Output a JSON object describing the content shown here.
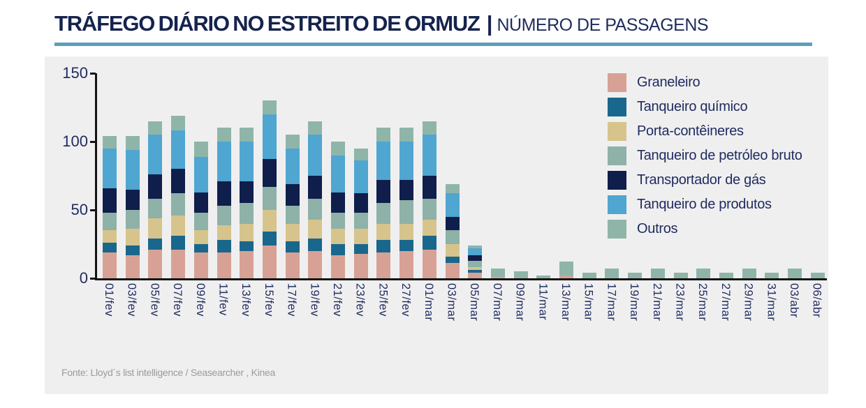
{
  "header": {
    "title": "TRÁFEGO DIÁRIO NO ESTREITO DE ORMUZ",
    "separator": "|",
    "subtitle": "NÚMERO DE PASSAGENS"
  },
  "footer": {
    "source": "Fonte: Lloyd´s list intelligence / Seasearcher , Kinea"
  },
  "colors": {
    "title": "#15234E",
    "divider": "#5C9FB9",
    "panel_background": "#F0EFF0",
    "axis": "#141414",
    "tick_label": "#1E2B5E",
    "footer_text": "#9B9B9B"
  },
  "chart_data": {
    "type": "bar",
    "stacked": true,
    "title": "TRÁFEGO DIÁRIO NO ESTREITO DE ORMUZ | NÚMERO DE PASSAGENS",
    "xlabel": "",
    "ylabel": "",
    "ylim": [
      0,
      150
    ],
    "yticks": [
      0,
      50,
      100,
      150
    ],
    "grid": false,
    "legend_position": "top-right",
    "categories": [
      "01/fev",
      "03/fev",
      "05/fev",
      "07/fev",
      "09/fev",
      "11/fev",
      "13/fev",
      "15/fev",
      "17/fev",
      "19/fev",
      "21/fev",
      "23/fev",
      "25/fev",
      "27/fev",
      "01/mar",
      "03/mar",
      "05/mar",
      "07/mar",
      "09/mar",
      "11/mar",
      "13/mar",
      "15/mar",
      "17/mar",
      "19/mar",
      "21/mar",
      "23/mar",
      "25/mar",
      "27/mar",
      "29/mar",
      "31/mar",
      "03/abr",
      "06/abr"
    ],
    "series": [
      {
        "name": "Graneleiro",
        "color": "#D7A295",
        "values": [
          19,
          17,
          21,
          21,
          19,
          19,
          20,
          24,
          19,
          20,
          17,
          18,
          19,
          20,
          21,
          11,
          4,
          1,
          0,
          0,
          2,
          0,
          0,
          0,
          0,
          0,
          0,
          0,
          0,
          0,
          0,
          0
        ]
      },
      {
        "name": "Tanqueiro químico",
        "color": "#19678C",
        "values": [
          7,
          7,
          8,
          10,
          6,
          9,
          7,
          10,
          8,
          9,
          8,
          7,
          9,
          8,
          10,
          5,
          2,
          0,
          0,
          0,
          0,
          0,
          0,
          0,
          0,
          0,
          0,
          0,
          0,
          0,
          0,
          0
        ]
      },
      {
        "name": "Porta-contêineres",
        "color": "#D6C48C",
        "values": [
          9,
          12,
          15,
          15,
          10,
          11,
          13,
          16,
          13,
          14,
          11,
          11,
          12,
          12,
          12,
          9,
          2,
          0,
          0,
          0,
          0,
          0,
          0,
          0,
          0,
          0,
          0,
          0,
          0,
          0,
          0,
          0
        ]
      },
      {
        "name": "Tanqueiro de petróleo bruto",
        "color": "#8EB1A8",
        "values": [
          13,
          14,
          14,
          16,
          13,
          14,
          15,
          17,
          13,
          15,
          12,
          12,
          15,
          17,
          15,
          10,
          5,
          0,
          0,
          0,
          0,
          0,
          0,
          0,
          0,
          0,
          0,
          0,
          0,
          0,
          0,
          0
        ]
      },
      {
        "name": "Transportador de gás",
        "color": "#0F1E4B",
        "values": [
          18,
          15,
          18,
          18,
          15,
          18,
          16,
          20,
          16,
          17,
          15,
          14,
          17,
          15,
          17,
          10,
          4,
          0,
          0,
          0,
          0,
          0,
          0,
          0,
          0,
          0,
          0,
          0,
          0,
          0,
          0,
          0
        ]
      },
      {
        "name": "Tanqueiro de produtos",
        "color": "#4FA6D0",
        "values": [
          29,
          29,
          29,
          28,
          26,
          29,
          29,
          33,
          26,
          30,
          27,
          24,
          28,
          28,
          30,
          17,
          5,
          0,
          0,
          0,
          0,
          0,
          0,
          0,
          0,
          0,
          0,
          0,
          0,
          0,
          0,
          0
        ]
      },
      {
        "name": "Outros",
        "color": "#8FB5A9",
        "values": [
          9,
          10,
          10,
          11,
          11,
          10,
          10,
          10,
          10,
          10,
          10,
          9,
          10,
          10,
          10,
          7,
          2,
          6,
          5,
          2,
          10,
          4,
          7,
          4,
          7,
          4,
          7,
          4,
          7,
          4,
          7,
          4
        ]
      }
    ]
  }
}
